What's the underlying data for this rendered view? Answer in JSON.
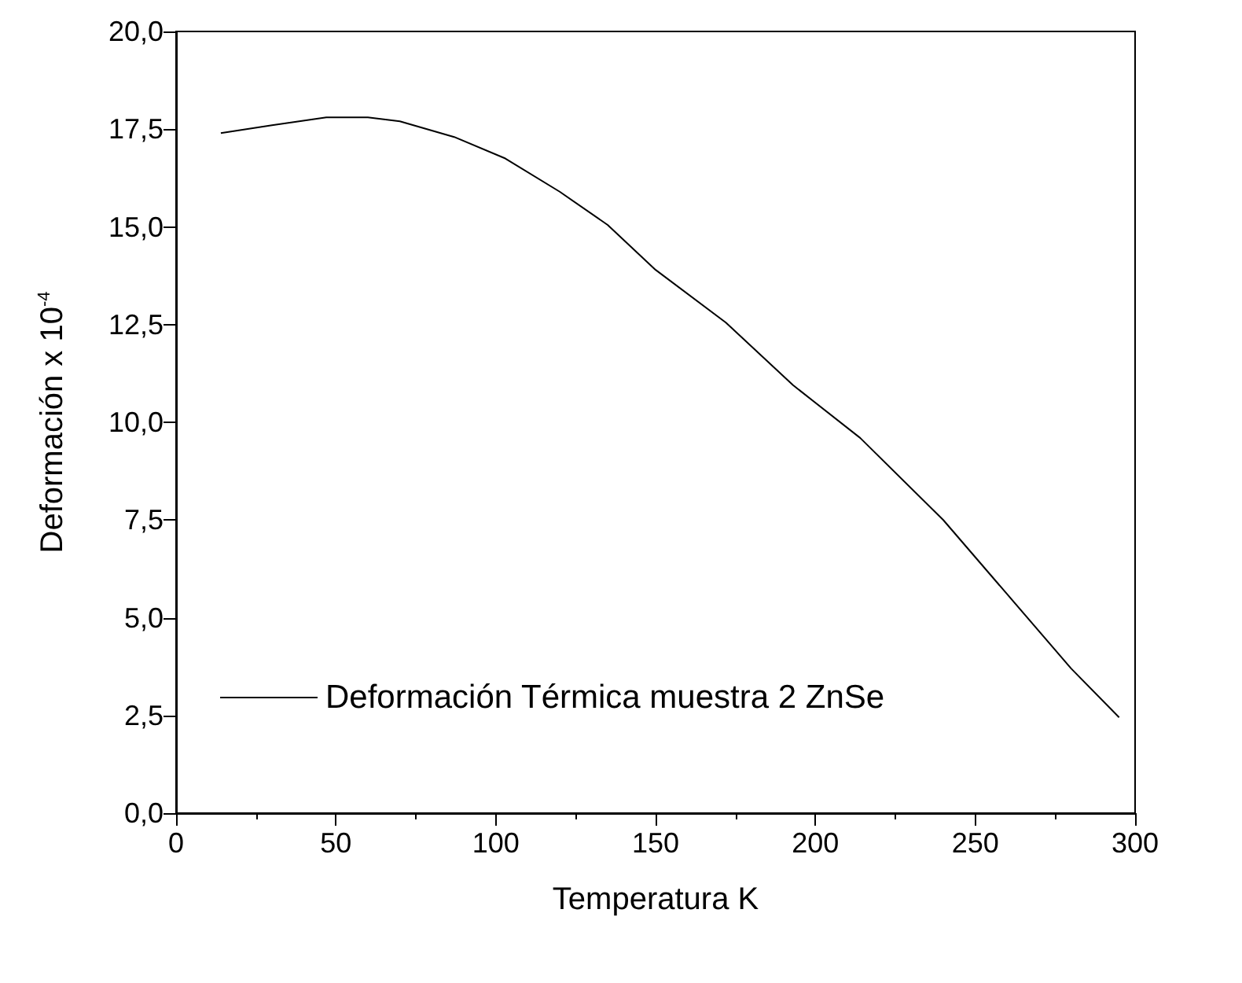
{
  "chart_data": {
    "type": "line",
    "xlabel": "Temperatura K",
    "ylabel": "Deformación x 10$^{-4}$",
    "series": [
      {
        "name": "Deformación Térmica muestra 2 ZnSe",
        "color": "#000000",
        "x": [
          14,
          30,
          47,
          60,
          70,
          87,
          103,
          120,
          135,
          150,
          172,
          193,
          214,
          240,
          260,
          280,
          295
        ],
        "values": [
          17.4,
          17.6,
          17.8,
          17.8,
          17.7,
          17.3,
          16.75,
          15.9,
          15.05,
          13.9,
          12.55,
          10.95,
          9.6,
          7.5,
          5.6,
          3.7,
          2.45
        ]
      }
    ],
    "xlim": [
      0,
      300
    ],
    "xticks": [
      0,
      50,
      100,
      150,
      200,
      250,
      300
    ],
    "ylim": [
      0,
      20
    ],
    "yticks": [
      {
        "value": 0,
        "label": "0,0"
      },
      {
        "value": 2.5,
        "label": "2,5"
      },
      {
        "value": 5,
        "label": "5,0"
      },
      {
        "value": 7.5,
        "label": "7,5"
      },
      {
        "value": 10,
        "label": "10,0"
      },
      {
        "value": 12.5,
        "label": "12,5"
      },
      {
        "value": 15,
        "label": "15,0"
      },
      {
        "value": 17.5,
        "label": "17,5"
      },
      {
        "value": 20,
        "label": "20,0"
      }
    ],
    "grid": false,
    "legend": "bottom left",
    "marker": "none",
    "line_style": "solid"
  }
}
